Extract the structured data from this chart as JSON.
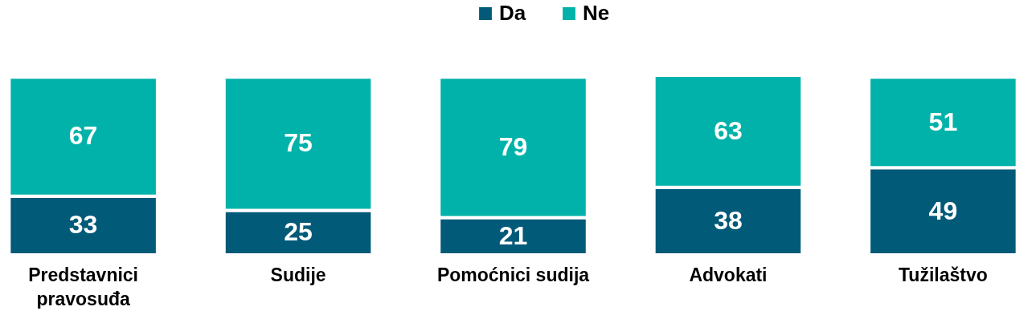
{
  "chart_data": {
    "type": "bar",
    "stacked": true,
    "categories": [
      "Predstavnici pravosuđa",
      "Sudije",
      "Pomoćnici sudija",
      "Advokati",
      "Tužilaštvo"
    ],
    "series": [
      {
        "name": "Da",
        "color": "#005a78",
        "values": [
          33,
          25,
          21,
          38,
          49
        ]
      },
      {
        "name": "Ne",
        "color": "#00b2a9",
        "values": [
          67,
          75,
          79,
          63,
          51
        ]
      }
    ],
    "data_labels": true,
    "legend": "top",
    "tick_labels": "x"
  }
}
